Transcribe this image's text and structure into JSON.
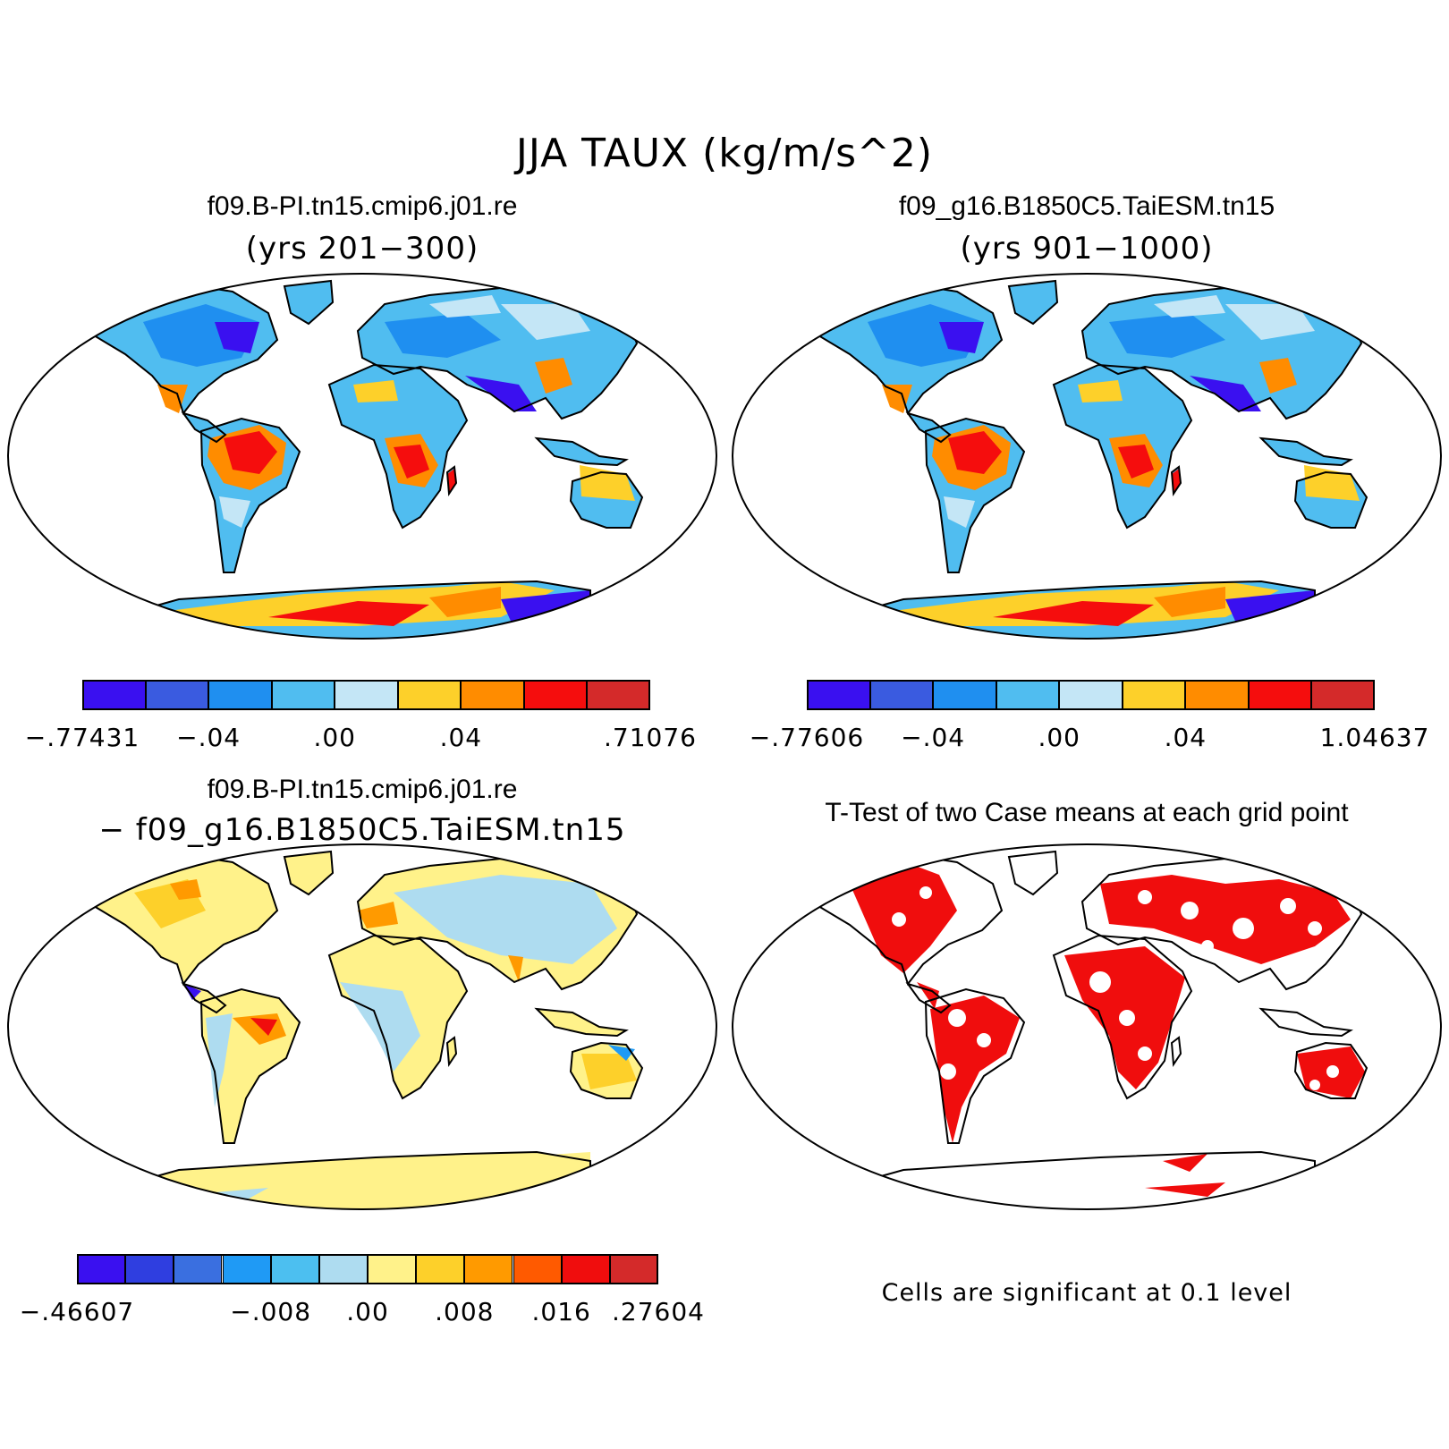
{
  "main_title": "JJA TAUX (kg/m/s^2)",
  "panels": {
    "top_left": {
      "title": "f09.B-PI.tn15.cmip6.j01.re",
      "subtitle": "(yrs 201−300)"
    },
    "top_right": {
      "title": "f09_g16.B1850C5.TaiESM.tn15",
      "subtitle": "(yrs 901−1000)"
    },
    "bottom_left": {
      "title": "f09.B-PI.tn15.cmip6.j01.re",
      "subtitle": "− f09_g16.B1850C5.TaiESM.tn15"
    },
    "bottom_right": {
      "title": "T-Test of two Case means at each grid point",
      "note": "Cells are significant at 0.1 level"
    }
  },
  "colorbars": {
    "top_left": {
      "colors": [
        "#3a10f0",
        "#3a5be0",
        "#1f8ff0",
        "#50bdf0",
        "#c4e6f6",
        "#fdd02a",
        "#ff8c00",
        "#f50d0d",
        "#d42a2a"
      ],
      "labels": [
        {
          "text": "−.77431",
          "at": 0
        },
        {
          "text": "−.04",
          "at": 2
        },
        {
          "text": ".00",
          "at": 4
        },
        {
          "text": ".04",
          "at": 6
        },
        {
          "text": ".71076",
          "at": 9
        }
      ]
    },
    "top_right": {
      "colors": [
        "#3a10f0",
        "#3a5be0",
        "#1f8ff0",
        "#50bdf0",
        "#c4e6f6",
        "#fdd02a",
        "#ff8c00",
        "#f50d0d",
        "#d42a2a"
      ],
      "labels": [
        {
          "text": "−.77606",
          "at": 0
        },
        {
          "text": "−.04",
          "at": 2
        },
        {
          "text": ".00",
          "at": 4
        },
        {
          "text": ".04",
          "at": 6
        },
        {
          "text": "1.04637",
          "at": 9
        }
      ]
    },
    "bottom_left": {
      "colors": [
        "#3a10f0",
        "#2f3ee0",
        "#3a6fe0",
        "#1f9af5",
        "#4cbff0",
        "#aedcf0",
        "#fff28a",
        "#fdd02a",
        "#ff9a00",
        "#ff5a00",
        "#f00d0d",
        "#d42a2a"
      ],
      "labels": [
        {
          "text": "−.46607",
          "at": 0
        },
        {
          "text": "−.008",
          "at": 4
        },
        {
          "text": ".00",
          "at": 6
        },
        {
          "text": ".008",
          "at": 8
        },
        {
          "text": ".016",
          "at": 10
        },
        {
          "text": ".27604",
          "at": 12
        }
      ]
    }
  },
  "map_colors": {
    "land_cold": "#50bdf0",
    "land_cool": "#1f8ff0",
    "land_deep": "#3a10f0",
    "land_light": "#c4e6f6",
    "warm": "#fdd02a",
    "warmer": "#ff8c00",
    "hot": "#f50d0d",
    "diff_base": "#fff28a",
    "diff_blue": "#aedcf0",
    "sig": "#f00d0d"
  }
}
